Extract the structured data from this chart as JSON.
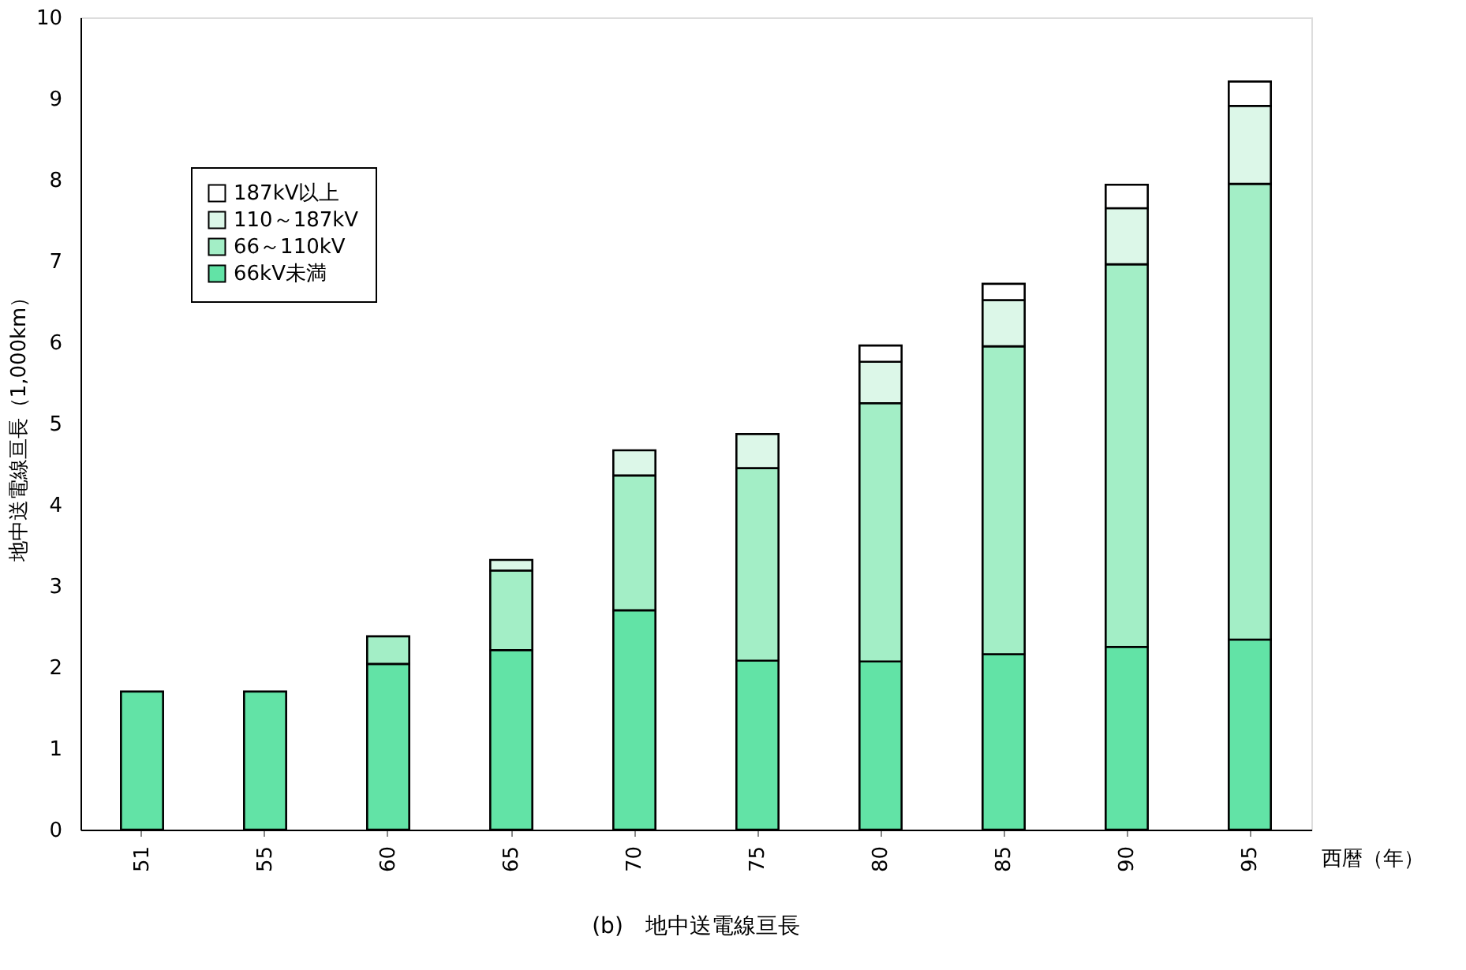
{
  "chart_data": {
    "type": "bar",
    "stacked": true,
    "title": "(b)　地中送電線亘長",
    "xlabel": "西暦（年）",
    "ylabel": "地中送電線亘長（1,000km）",
    "categories": [
      "51",
      "55",
      "60",
      "65",
      "70",
      "75",
      "80",
      "85",
      "90",
      "95"
    ],
    "series": [
      {
        "name": "66kV未満",
        "color": "#62e3a6",
        "values": [
          1.7,
          1.7,
          2.04,
          2.21,
          2.7,
          2.08,
          2.07,
          2.16,
          2.25,
          2.34
        ]
      },
      {
        "name": "66～110kV",
        "color": "#a3eec6",
        "values": [
          null,
          null,
          0.34,
          0.98,
          1.66,
          2.37,
          3.18,
          3.79,
          4.71,
          5.61
        ]
      },
      {
        "name": "110～187kV",
        "color": "#dcf7e8",
        "values": [
          null,
          null,
          null,
          0.13,
          0.31,
          0.42,
          0.51,
          0.57,
          0.69,
          0.96
        ]
      },
      {
        "name": "187kV以上",
        "color": "#ffffff",
        "values": [
          null,
          null,
          null,
          null,
          null,
          null,
          0.2,
          0.2,
          0.29,
          0.3
        ]
      }
    ],
    "ylim": [
      0,
      10
    ],
    "yticks": [
      0,
      1,
      2,
      3,
      4,
      5,
      6,
      7,
      8,
      9,
      10
    ],
    "grid": false,
    "legend": "top left"
  }
}
